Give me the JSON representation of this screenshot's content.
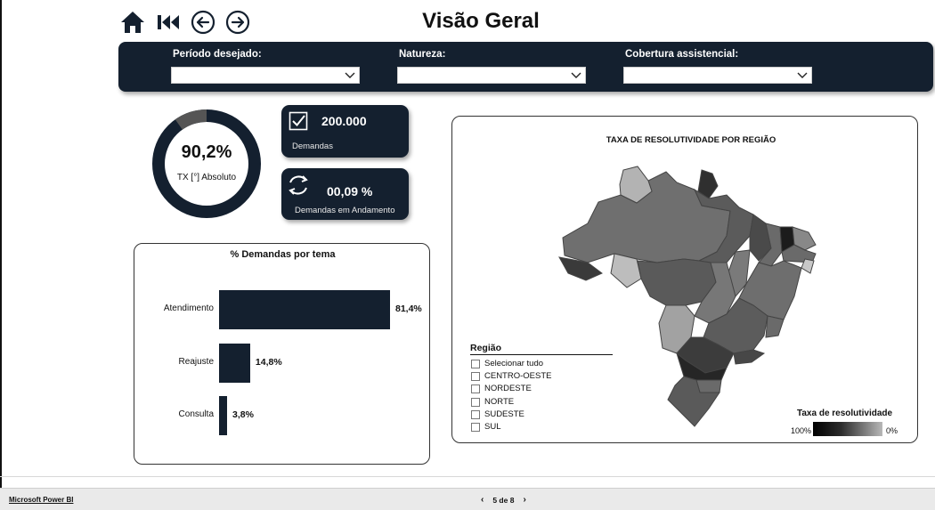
{
  "header": {
    "title": "Visão Geral",
    "icons": [
      "home-icon",
      "first-page-icon",
      "back-icon",
      "forward-icon"
    ]
  },
  "filters": [
    {
      "label": "Período desejado:",
      "value": ""
    },
    {
      "label": "Natureza:",
      "value": ""
    },
    {
      "label": "Cobertura assistencial:",
      "value": ""
    }
  ],
  "gauge": {
    "value": "90,2%",
    "label": "TX [°] Absoluto",
    "fraction": 0.902
  },
  "kpis": {
    "demandas": {
      "value": "200.000",
      "label": "Demandas",
      "icon": "check-icon"
    },
    "andamento": {
      "value": "00,09 %",
      "label": "Demandas em Andamento",
      "icon": "refresh-icon"
    }
  },
  "demandas_chart": {
    "title": "% Demandas por tema"
  },
  "map_card": {
    "title": "TAXA DE RESOLUTIVIDADE POR REGIÃO",
    "legend_title": "Região",
    "legend_items": [
      "Selecionar tudo",
      "CENTRO-OESTE",
      "NORDESTE",
      "NORTE",
      "SUDESTE",
      "SUL"
    ],
    "scale_title": "Taxa de resolutividade",
    "scale_left": "100%",
    "scale_right": "0%"
  },
  "chart_data": {
    "type": "bar",
    "orientation": "horizontal",
    "title": "% Demandas por tema",
    "categories": [
      "Atendimento",
      "Reajuste",
      "Consulta"
    ],
    "values": [
      81.4,
      14.8,
      3.8
    ],
    "value_labels": [
      "81,4%",
      "14,8%",
      "3,8%"
    ],
    "xlim": [
      0,
      81.4
    ],
    "color": "#14202f"
  },
  "footer": {
    "brand": "Microsoft Power BI",
    "page": "5 de 8",
    "prev_glyph": "‹",
    "next_glyph": "›"
  },
  "colors": {
    "accent": "#14202f",
    "donut_rest": "#555555"
  }
}
